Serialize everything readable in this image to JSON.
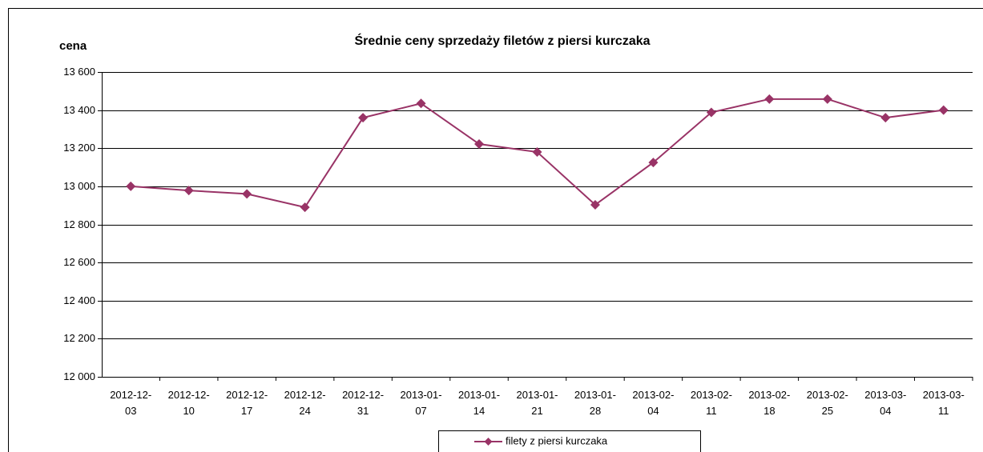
{
  "chart_data": {
    "type": "line",
    "title": "Średnie ceny sprzedaży filetów z piersi kurczaka",
    "y_label": "cena",
    "categories": [
      "2012-12-03",
      "2012-12-10",
      "2012-12-17",
      "2012-12-24",
      "2012-12-31",
      "2013-01-07",
      "2013-01-14",
      "2013-01-21",
      "2013-01-28",
      "2013-02-04",
      "2013-02-11",
      "2013-02-18",
      "2013-02-25",
      "2013-03-04",
      "2013-03-11"
    ],
    "series": [
      {
        "name": "filety z piersi kurczaka",
        "color": "#993366",
        "values": [
          13000,
          12978,
          12960,
          12890,
          13360,
          13435,
          13222,
          13180,
          12903,
          13125,
          13388,
          13458,
          13458,
          13360,
          13400
        ]
      }
    ],
    "ylim": [
      12000,
      13600
    ],
    "yticks": [
      {
        "value": 12000,
        "label": "12 000"
      },
      {
        "value": 12200,
        "label": "12 200"
      },
      {
        "value": 12400,
        "label": "12 400"
      },
      {
        "value": 12600,
        "label": "12 600"
      },
      {
        "value": 12800,
        "label": "12 800"
      },
      {
        "value": 13000,
        "label": "13 000"
      },
      {
        "value": 13200,
        "label": "13 200"
      },
      {
        "value": 13400,
        "label": "13 400"
      },
      {
        "value": 13600,
        "label": "13 600"
      }
    ],
    "grid": true,
    "legend": "bottom"
  }
}
